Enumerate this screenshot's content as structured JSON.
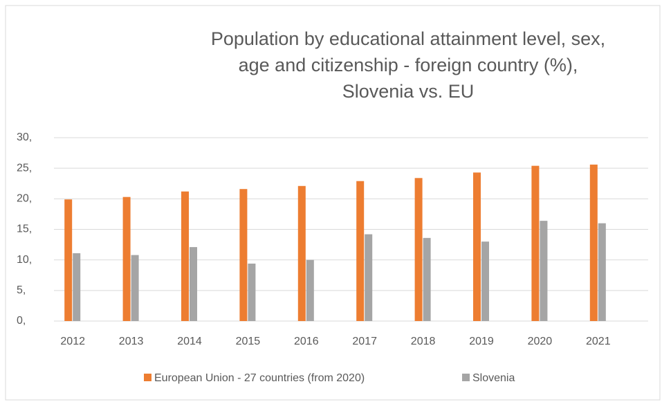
{
  "chart_data": {
    "type": "bar",
    "title": [
      "Population by educational attainment level, sex,",
      "age and citizenship - foreign country (%),",
      "Slovenia vs. EU"
    ],
    "categories": [
      "2012",
      "2013",
      "2014",
      "2015",
      "2016",
      "2017",
      "2018",
      "2019",
      "2020",
      "2021"
    ],
    "series": [
      {
        "name": "European Union - 27 countries (from 2020)",
        "color": "#ed7d31",
        "values": [
          19.9,
          20.3,
          21.2,
          21.6,
          22.1,
          22.9,
          23.4,
          24.3,
          25.4,
          25.6
        ]
      },
      {
        "name": "Slovenia",
        "color": "#a5a5a5",
        "values": [
          11.1,
          10.8,
          12.1,
          9.4,
          10.0,
          14.2,
          13.6,
          13.0,
          16.4,
          16.0
        ]
      }
    ],
    "ylim": [
      0,
      30
    ],
    "yticks": [
      {
        "value": 0,
        "label": "0,"
      },
      {
        "value": 5,
        "label": "5,"
      },
      {
        "value": 10,
        "label": "10,"
      },
      {
        "value": 15,
        "label": "15,"
      },
      {
        "value": 20,
        "label": "20,"
      },
      {
        "value": 25,
        "label": "25,"
      },
      {
        "value": 30,
        "label": "30,"
      }
    ],
    "grid": true,
    "legend": "bottom"
  }
}
